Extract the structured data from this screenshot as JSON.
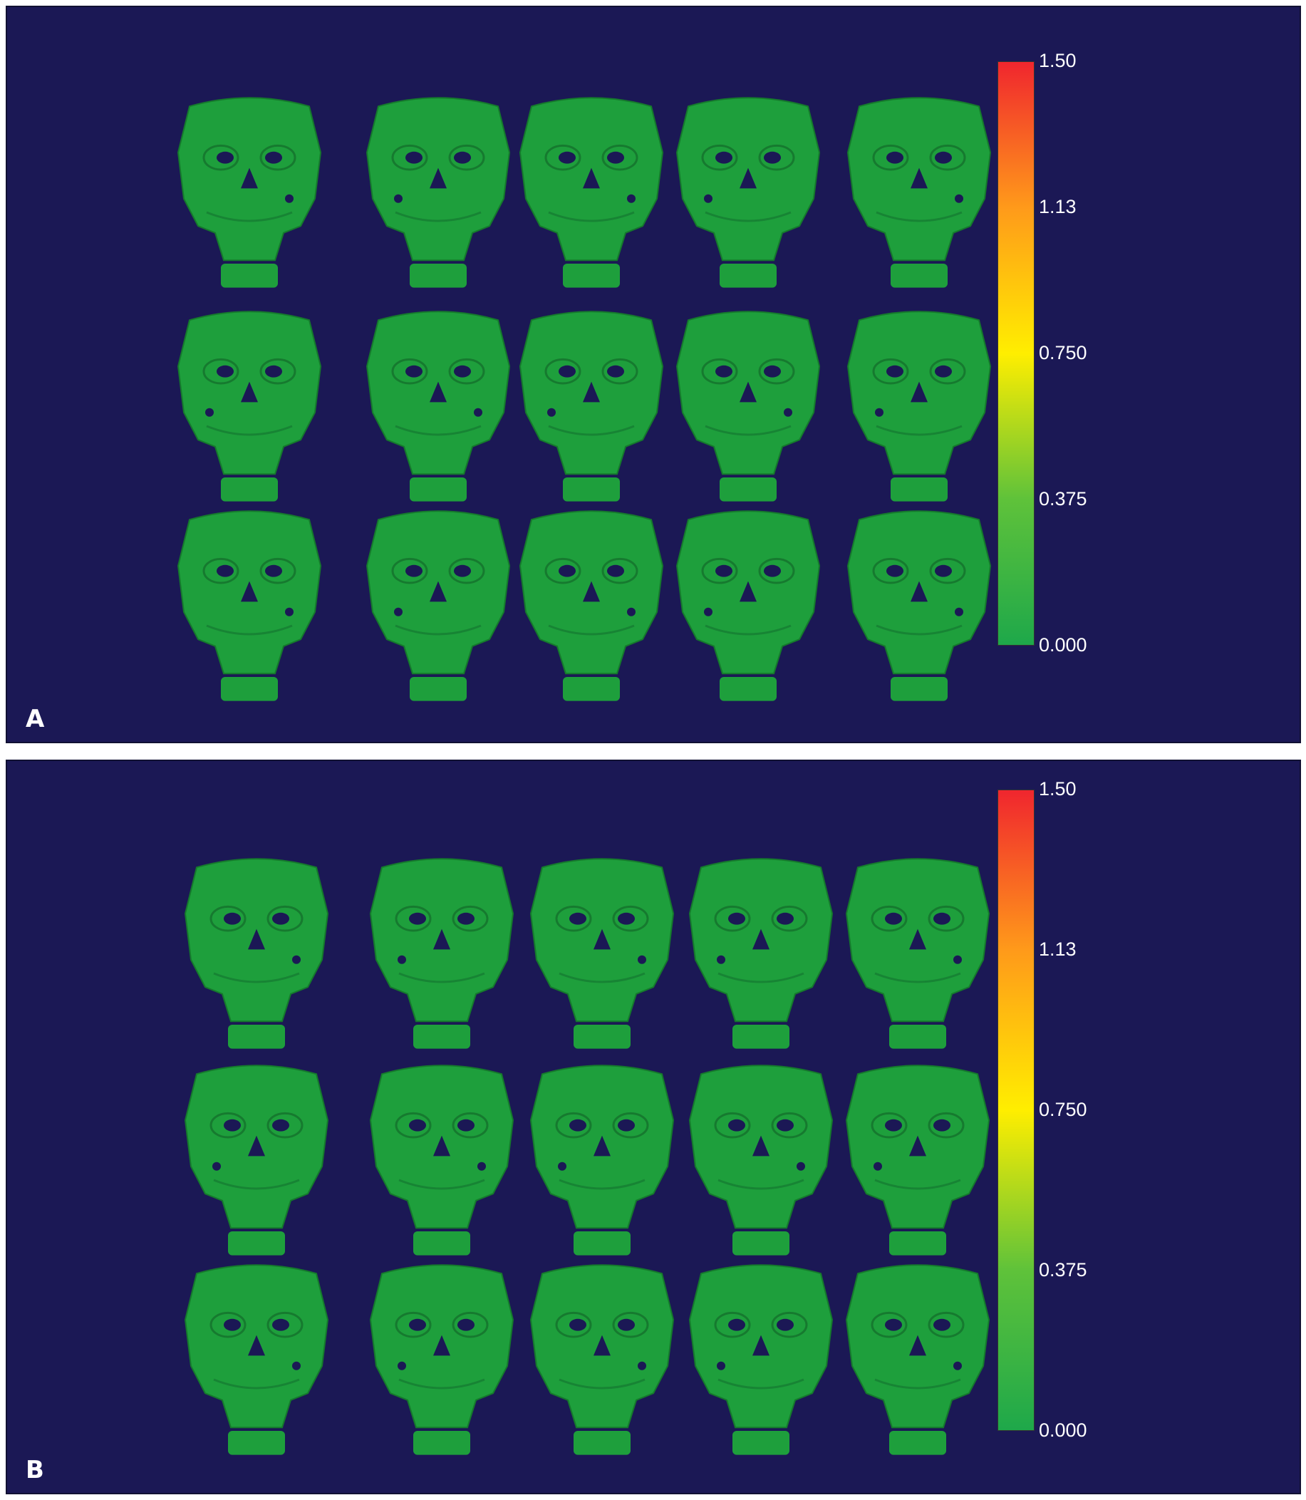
{
  "colors": {
    "background": "#1b1855",
    "skull_green": "#1e9f3c",
    "colormap": [
      "#1ea84a",
      "#5fc23a",
      "#ffee00",
      "#ff9a1a",
      "#f0262e"
    ]
  },
  "panels": [
    {
      "letter": "A",
      "colorbar": {
        "ticks": [
          "1.50",
          "1.13",
          "0.750",
          "0.375",
          "0.000"
        ]
      },
      "skull_rows": 3,
      "skull_cols": 5
    },
    {
      "letter": "B",
      "colorbar": {
        "ticks": [
          "1.50",
          "1.13",
          "0.750",
          "0.375",
          "0.000"
        ]
      },
      "skull_rows": 3,
      "skull_cols": 5
    }
  ]
}
